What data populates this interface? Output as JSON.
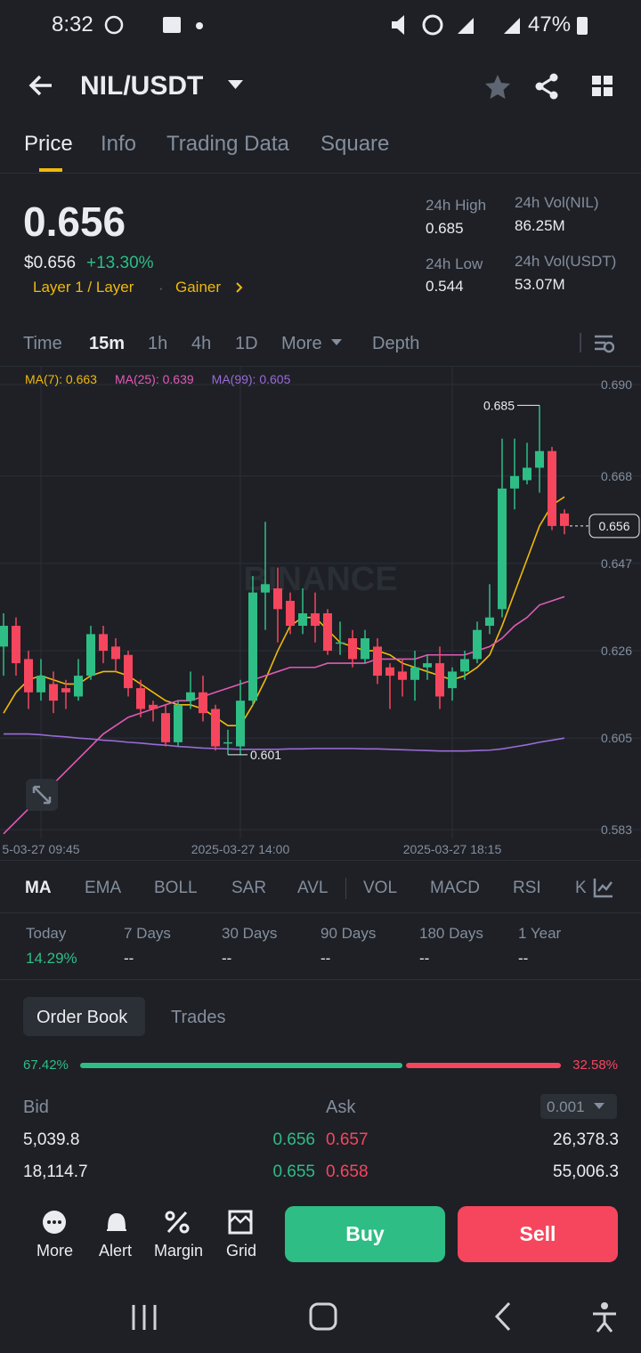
{
  "status_bar": {
    "time": "8:32",
    "battery": "47%"
  },
  "header": {
    "pair": "NIL/USDT"
  },
  "tabs": [
    "Price",
    "Info",
    "Trading Data",
    "Square"
  ],
  "price": {
    "last": "0.656",
    "usd": "$0.656",
    "change": "+13.30%",
    "tags": [
      "Layer 1 / Layer",
      "Gainer"
    ]
  },
  "stats": [
    {
      "label": "24h High",
      "value": "0.685"
    },
    {
      "label": "24h Vol(NIL)",
      "value": "86.25M"
    },
    {
      "label": "24h Low",
      "value": "0.544"
    },
    {
      "label": "24h Vol(USDT)",
      "value": "53.07M"
    }
  ],
  "timeframes": [
    "Time",
    "15m",
    "1h",
    "4h",
    "1D",
    "More",
    "Depth"
  ],
  "chart_data": {
    "type": "candlestick",
    "watermark": "BINANCE",
    "up_color": "#2ebd85",
    "down_color": "#f6465d",
    "open": [
      0.627,
      0.632,
      0.624,
      0.616,
      0.618,
      0.617,
      0.615,
      0.62,
      0.63,
      0.627,
      0.625,
      0.617,
      0.613,
      0.611,
      0.604,
      0.614,
      0.616,
      0.612,
      0.604,
      0.603,
      0.614,
      0.64,
      0.641,
      0.638,
      0.632,
      0.635,
      0.635,
      0.628,
      0.629,
      0.624,
      0.627,
      0.622,
      0.621,
      0.619,
      0.622,
      0.623,
      0.617,
      0.621,
      0.624,
      0.632,
      0.636,
      0.665,
      0.667,
      0.67,
      0.674,
      0.659
    ],
    "high": [
      0.635,
      0.634,
      0.626,
      0.624,
      0.621,
      0.619,
      0.624,
      0.632,
      0.632,
      0.629,
      0.626,
      0.619,
      0.614,
      0.613,
      0.614,
      0.621,
      0.62,
      0.613,
      0.607,
      0.619,
      0.644,
      0.657,
      0.646,
      0.64,
      0.641,
      0.64,
      0.636,
      0.633,
      0.631,
      0.631,
      0.629,
      0.623,
      0.624,
      0.626,
      0.625,
      0.627,
      0.622,
      0.626,
      0.633,
      0.642,
      0.677,
      0.677,
      0.676,
      0.685,
      0.675,
      0.66
    ],
    "low": [
      0.62,
      0.62,
      0.612,
      0.614,
      0.611,
      0.612,
      0.614,
      0.619,
      0.623,
      0.621,
      0.615,
      0.61,
      0.609,
      0.603,
      0.603,
      0.612,
      0.609,
      0.602,
      0.601,
      0.601,
      0.613,
      0.631,
      0.628,
      0.63,
      0.63,
      0.628,
      0.625,
      0.625,
      0.622,
      0.623,
      0.618,
      0.612,
      0.615,
      0.614,
      0.619,
      0.612,
      0.614,
      0.619,
      0.623,
      0.63,
      0.634,
      0.66,
      0.666,
      0.664,
      0.655,
      0.654
    ],
    "close": [
      0.632,
      0.623,
      0.616,
      0.62,
      0.614,
      0.616,
      0.62,
      0.63,
      0.626,
      0.624,
      0.617,
      0.612,
      0.612,
      0.604,
      0.613,
      0.616,
      0.611,
      0.603,
      0.604,
      0.614,
      0.64,
      0.642,
      0.636,
      0.632,
      0.635,
      0.632,
      0.626,
      0.628,
      0.624,
      0.629,
      0.62,
      0.62,
      0.619,
      0.622,
      0.623,
      0.615,
      0.621,
      0.624,
      0.631,
      0.634,
      0.665,
      0.668,
      0.67,
      0.674,
      0.656,
      0.656
    ],
    "series": [
      {
        "name": "MA(7): 0.663",
        "color": "#f0b90b",
        "values": [
          0.611,
          0.616,
          0.619,
          0.62,
          0.619,
          0.618,
          0.618,
          0.62,
          0.621,
          0.621,
          0.62,
          0.618,
          0.616,
          0.614,
          0.613,
          0.613,
          0.612,
          0.61,
          0.608,
          0.608,
          0.613,
          0.619,
          0.626,
          0.632,
          0.634,
          0.634,
          0.631,
          0.628,
          0.627,
          0.626,
          0.626,
          0.625,
          0.623,
          0.622,
          0.621,
          0.62,
          0.619,
          0.62,
          0.622,
          0.625,
          0.632,
          0.64,
          0.648,
          0.656,
          0.661,
          0.663
        ]
      },
      {
        "name": "MA(25): 0.639",
        "color": "#e05bb4",
        "values": [
          0.582,
          0.585,
          0.588,
          0.591,
          0.594,
          0.597,
          0.6,
          0.603,
          0.606,
          0.608,
          0.61,
          0.611,
          0.612,
          0.613,
          0.614,
          0.614,
          0.615,
          0.616,
          0.617,
          0.618,
          0.619,
          0.62,
          0.621,
          0.622,
          0.622,
          0.622,
          0.623,
          0.623,
          0.623,
          0.623,
          0.624,
          0.624,
          0.624,
          0.624,
          0.625,
          0.625,
          0.625,
          0.625,
          0.626,
          0.627,
          0.629,
          0.632,
          0.634,
          0.637,
          0.638,
          0.639
        ]
      },
      {
        "name": "MA(99): 0.605",
        "color": "#9a6bd6",
        "values": [
          0.606,
          0.606,
          0.606,
          0.6058,
          0.6055,
          0.6053,
          0.605,
          0.6048,
          0.6045,
          0.6043,
          0.604,
          0.6038,
          0.6035,
          0.6033,
          0.603,
          0.6028,
          0.6026,
          0.6025,
          0.6024,
          0.6023,
          0.6023,
          0.6023,
          0.6023,
          0.6024,
          0.6024,
          0.6025,
          0.6025,
          0.6025,
          0.6025,
          0.6024,
          0.6024,
          0.6023,
          0.6022,
          0.6021,
          0.602,
          0.6019,
          0.6019,
          0.6019,
          0.602,
          0.6021,
          0.6024,
          0.6029,
          0.6034,
          0.604,
          0.6045,
          0.605
        ]
      }
    ],
    "ylim": [
      0.583,
      0.69
    ],
    "yticks": [
      {
        "value": 0.69,
        "label": "0.690"
      },
      0.668,
      0.647,
      0.626,
      0.605,
      0.583
    ],
    "xticks": [
      {
        "value": 3,
        "label": "5-03-27 09:45"
      },
      {
        "value": 19,
        "label": "2025-03-27 14:00"
      },
      {
        "value": 36,
        "label": "2025-03-27 18:15"
      }
    ],
    "high_mark": 0.685,
    "low_mark": 0.601,
    "last_price": 0.656,
    "grid": true
  },
  "indicators": [
    "MA",
    "EMA",
    "BOLL",
    "SAR",
    "AVL",
    "VOL",
    "MACD",
    "RSI",
    "K"
  ],
  "performance": [
    {
      "label": "Today",
      "value": "14.29%"
    },
    {
      "label": "7 Days",
      "value": "--"
    },
    {
      "label": "30 Days",
      "value": "--"
    },
    {
      "label": "90 Days",
      "value": "--"
    },
    {
      "label": "180 Days",
      "value": "--"
    },
    {
      "label": "1 Year",
      "value": "--"
    }
  ],
  "order_book": {
    "tabs": [
      "Order Book",
      "Trades"
    ],
    "bid_ratio": 67.42,
    "ask_ratio": 32.58,
    "bid_ratio_label": "67.42%",
    "ask_ratio_label": "32.58%",
    "bid_header": "Bid",
    "ask_header": "Ask",
    "precision": "0.001",
    "rows": [
      [
        "5,039.8",
        "0.656",
        "0.657",
        "26,378.3"
      ],
      [
        "18,114.7",
        "0.655",
        "0.658",
        "55,006.3"
      ]
    ]
  },
  "actions": [
    "More",
    "Alert",
    "Margin",
    "Grid"
  ],
  "buttons": {
    "buy": "Buy",
    "sell": "Sell"
  }
}
